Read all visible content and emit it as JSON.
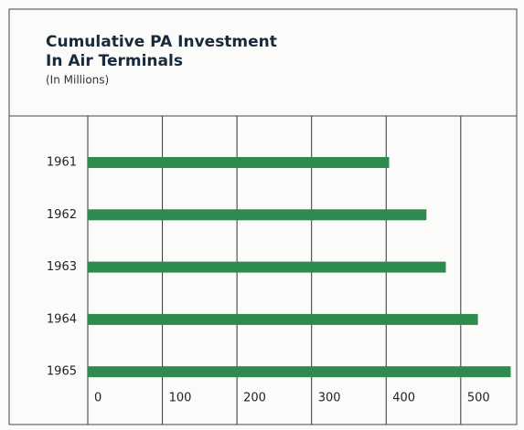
{
  "chart_data": {
    "type": "barh",
    "title": [
      "Cumulative PA Investment",
      "In Air Terminals"
    ],
    "subtitle": "(In Millions)",
    "categories": [
      "1961",
      "1962",
      "1963",
      "1964",
      "1965"
    ],
    "values": [
      404,
      454,
      480,
      523,
      567
    ],
    "color": "#2f8a4f",
    "xlim": [
      0,
      575
    ],
    "xticks": [
      0,
      100,
      200,
      300,
      400,
      500
    ],
    "grid": true
  }
}
